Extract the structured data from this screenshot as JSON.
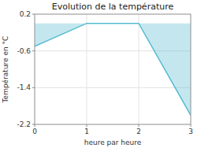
{
  "chart_data": {
    "type": "area",
    "title": "Evolution de la température",
    "x_label": "heure par heure",
    "y_label": "Température en °C",
    "x": [
      0,
      1,
      2,
      3
    ],
    "values": [
      -0.5,
      0.0,
      0.0,
      -2.0
    ],
    "color": "#55bbd0",
    "xlim": [
      0,
      3
    ],
    "ylim": [
      -2.2,
      0.2
    ],
    "xticks": [
      0,
      1,
      2,
      3
    ],
    "yticks": [
      0.2,
      -0.6,
      -1.4,
      -2.2
    ],
    "grid": true
  }
}
